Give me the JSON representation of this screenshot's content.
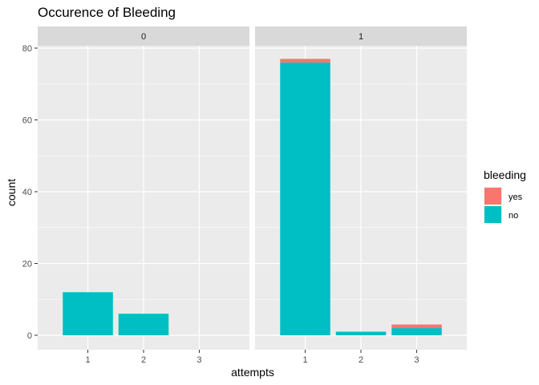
{
  "chart_data": {
    "type": "bar",
    "stacked": true,
    "faceted": true,
    "title": "Occurence of Bleeding",
    "xlabel": "attempts",
    "ylabel": "count",
    "ylim": [
      0,
      80
    ],
    "y_ticks": [
      0,
      20,
      40,
      60,
      80
    ],
    "categories": [
      "1",
      "2",
      "3"
    ],
    "legend": {
      "title": "bleeding",
      "position": "right",
      "entries": [
        {
          "label": "yes",
          "color": "#F8766D"
        },
        {
          "label": "no",
          "color": "#00BFC4"
        }
      ]
    },
    "panels": [
      {
        "label": "0",
        "series": [
          {
            "name": "no",
            "color": "#00BFC4",
            "values": [
              12,
              6,
              0
            ]
          },
          {
            "name": "yes",
            "color": "#F8766D",
            "values": [
              0,
              0,
              0
            ]
          }
        ]
      },
      {
        "label": "1",
        "series": [
          {
            "name": "no",
            "color": "#00BFC4",
            "values": [
              76,
              1,
              2
            ]
          },
          {
            "name": "yes",
            "color": "#F8766D",
            "values": [
              1,
              0,
              1
            ]
          }
        ]
      }
    ],
    "grid": true
  }
}
